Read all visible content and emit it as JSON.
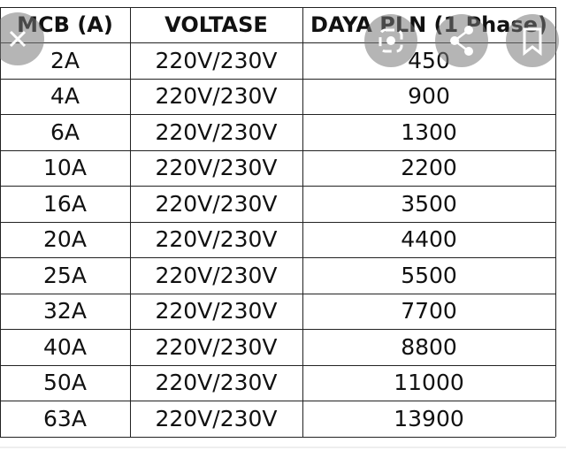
{
  "table": {
    "headers": [
      "MCB (A)",
      "VOLTASE",
      "DAYA PLN (1 Phase)"
    ],
    "rows": [
      [
        "2A",
        "220V/230V",
        "450"
      ],
      [
        "4A",
        "220V/230V",
        "900"
      ],
      [
        "6A",
        "220V/230V",
        "1300"
      ],
      [
        "10A",
        "220V/230V",
        "2200"
      ],
      [
        "16A",
        "220V/230V",
        "3500"
      ],
      [
        "20A",
        "220V/230V",
        "4400"
      ],
      [
        "25A",
        "220V/230V",
        "5500"
      ],
      [
        "32A",
        "220V/230V",
        "7700"
      ],
      [
        "40A",
        "220V/230V",
        "8800"
      ],
      [
        "50A",
        "220V/230V",
        "11000"
      ],
      [
        "63A",
        "220V/230V",
        "13900"
      ]
    ]
  }
}
